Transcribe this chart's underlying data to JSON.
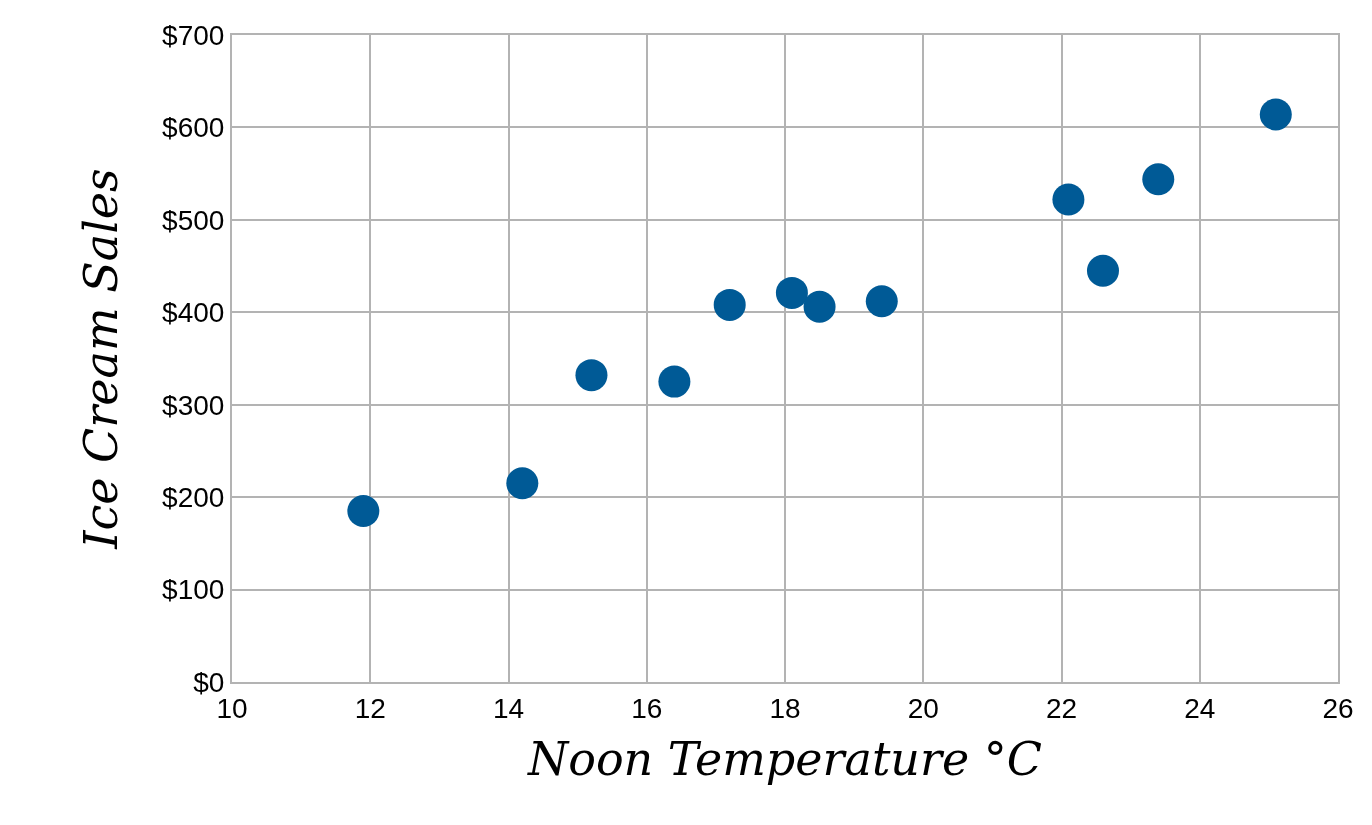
{
  "chart_data": {
    "type": "scatter",
    "xlabel": "Noon Temperature °C",
    "ylabel": "Ice Cream Sales",
    "x": [
      11.9,
      14.2,
      15.2,
      16.4,
      17.2,
      18.1,
      18.5,
      19.4,
      22.1,
      22.6,
      23.4,
      25.1
    ],
    "series": [
      {
        "color": "#005a96",
        "values": [
          185,
          215,
          332,
          325,
          408,
          421,
          406,
          412,
          522,
          445,
          544,
          614
        ]
      }
    ],
    "xlim": [
      10,
      26
    ],
    "xticks": [
      10,
      12,
      14,
      16,
      18,
      20,
      22,
      24,
      26
    ],
    "ylim": [
      0,
      700
    ],
    "yticks": [
      {
        "value": 0,
        "label": "$0"
      },
      {
        "value": 100,
        "label": "$100"
      },
      {
        "value": 200,
        "label": "$200"
      },
      {
        "value": 300,
        "label": "$300"
      },
      {
        "value": 400,
        "label": "$400"
      },
      {
        "value": 500,
        "label": "$500"
      },
      {
        "value": 600,
        "label": "$600"
      },
      {
        "value": 700,
        "label": "$700"
      }
    ],
    "grid": true,
    "marker": "circle",
    "legend": false
  }
}
